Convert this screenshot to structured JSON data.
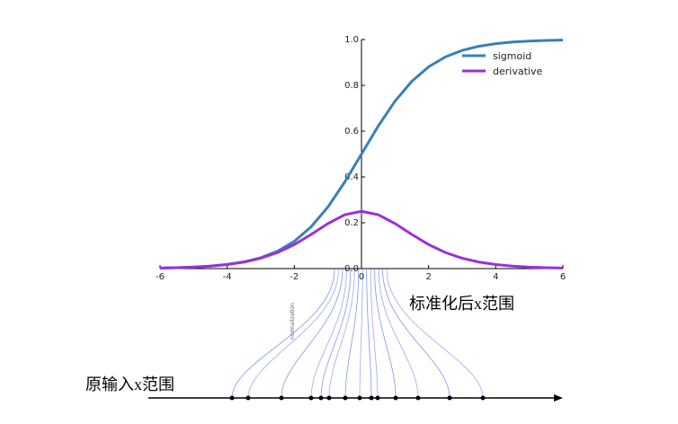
{
  "chart_data": {
    "type": "line",
    "x": [
      -6,
      -5.5,
      -5,
      -4.5,
      -4,
      -3.5,
      -3,
      -2.5,
      -2,
      -1.5,
      -1,
      -0.5,
      0,
      0.5,
      1,
      1.5,
      2,
      2.5,
      3,
      3.5,
      4,
      4.5,
      5,
      5.5,
      6
    ],
    "series": [
      {
        "name": "sigmoid",
        "color": "#3a7fb8",
        "values": [
          0.0025,
          0.0041,
          0.0067,
          0.011,
          0.018,
          0.0293,
          0.0474,
          0.0759,
          0.1192,
          0.1824,
          0.2689,
          0.3775,
          0.5,
          0.6225,
          0.7311,
          0.8176,
          0.8808,
          0.9241,
          0.9526,
          0.9707,
          0.982,
          0.989,
          0.9933,
          0.9959,
          0.9975
        ]
      },
      {
        "name": "derivative",
        "color": "#9b30d6",
        "values": [
          0.0025,
          0.0041,
          0.0066,
          0.0109,
          0.0177,
          0.0285,
          0.0452,
          0.0701,
          0.105,
          0.1491,
          0.1966,
          0.235,
          0.25,
          0.235,
          0.1966,
          0.1491,
          0.105,
          0.0701,
          0.0452,
          0.0285,
          0.0177,
          0.0109,
          0.0066,
          0.0041,
          0.0025
        ]
      }
    ],
    "xlim": [
      -6,
      6
    ],
    "ylim": [
      0,
      1
    ],
    "xticks": [
      -6,
      -4,
      -2,
      0,
      2,
      4,
      6
    ],
    "yticks": [
      {
        "value": 0,
        "label": "0.0"
      },
      0.2,
      0.4,
      0.6,
      0.8,
      {
        "value": 1,
        "label": "1.0"
      }
    ],
    "legend": "upper right"
  },
  "annotations": {
    "normalized_range": "标准化后x范围",
    "original_range": "原输入x范围",
    "normalization": "normalization"
  }
}
